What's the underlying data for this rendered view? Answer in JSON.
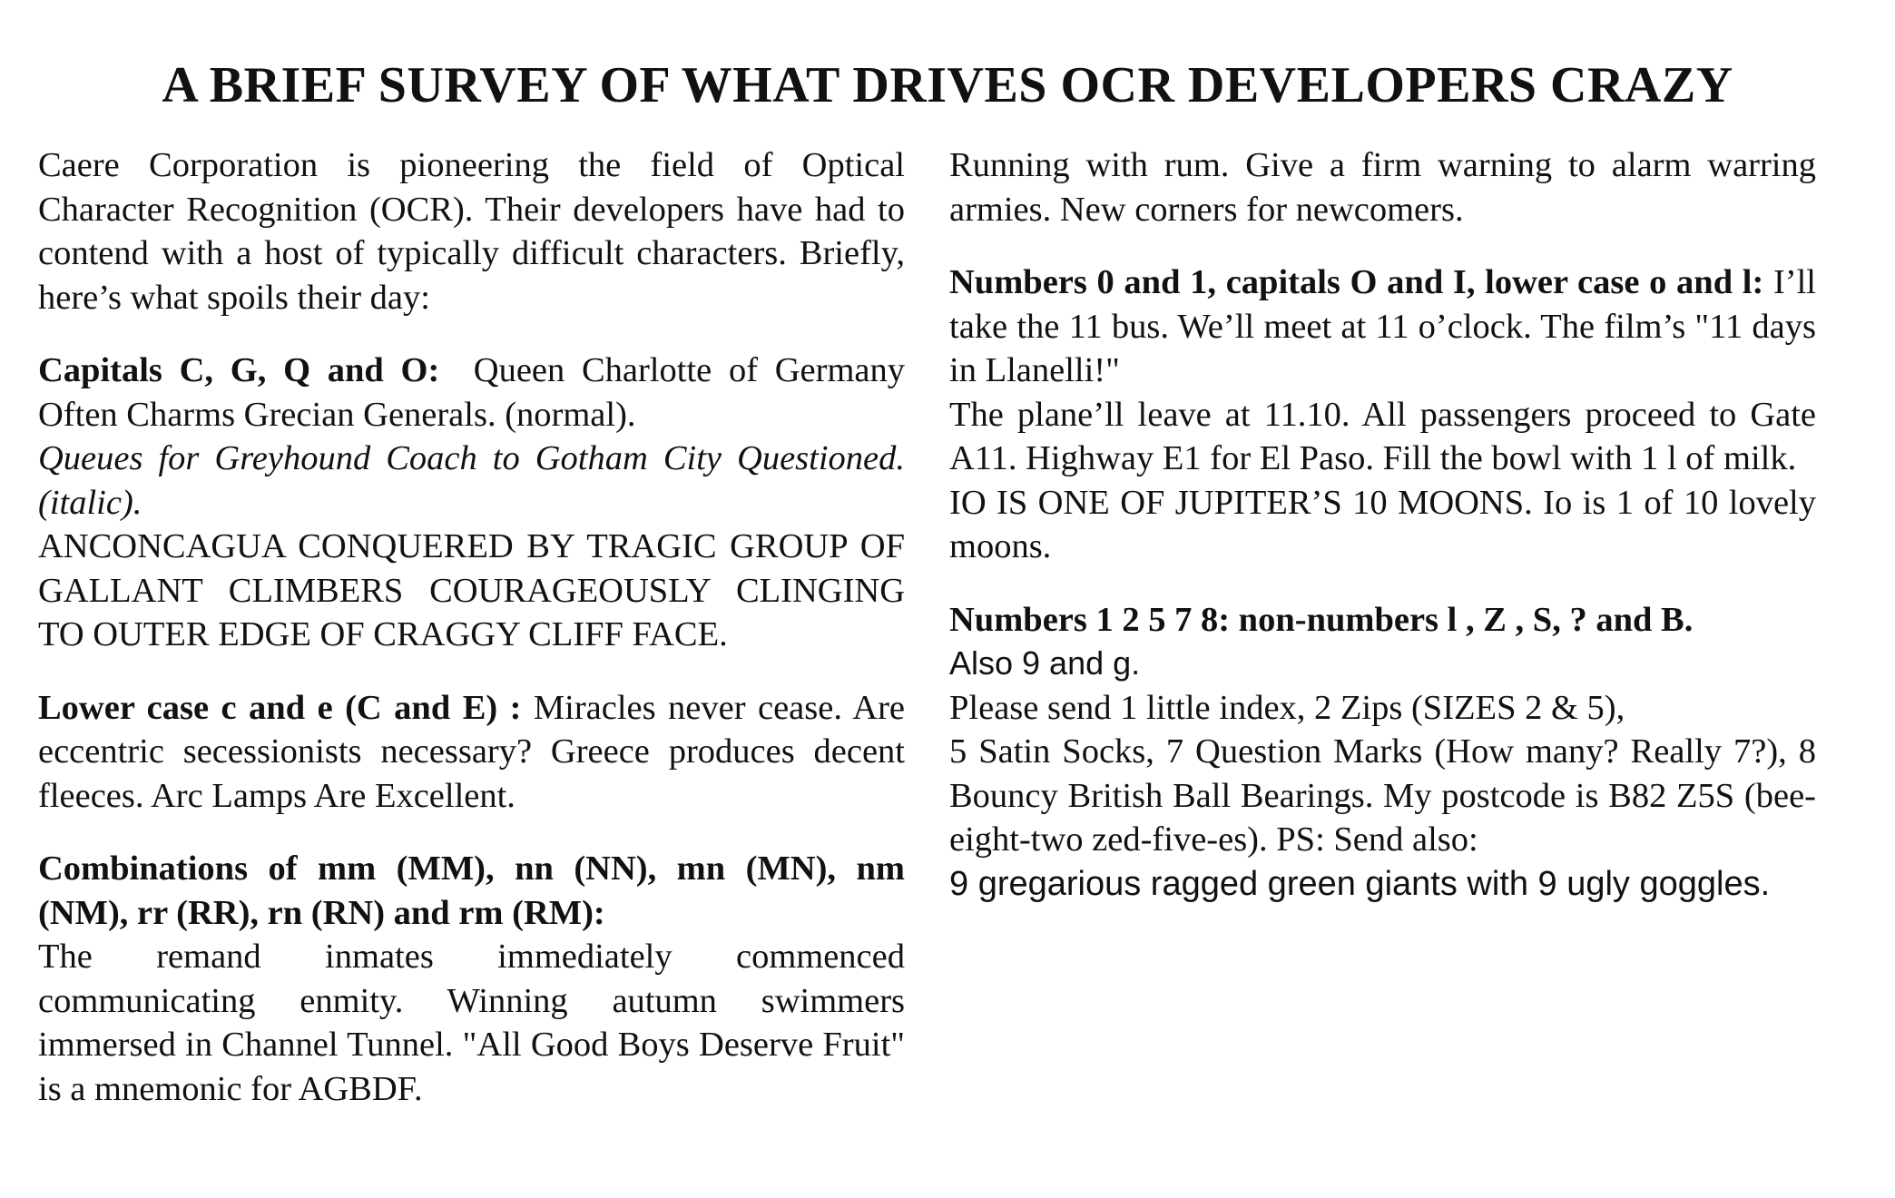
{
  "title": "A BRIEF SURVEY OF WHAT DRIVES OCR DEVELOPERS CRAZY",
  "left": {
    "intro": "Caere Corporation is pioneering the field of Optical Character Recognition (OCR). Their developers have had to contend with a host of typically difficult characters. Briefly, here’s what spoils their day:",
    "capitals": {
      "heading": "Capitals C, G, Q and O:",
      "normal": "Queen Charlotte of Germany Often Charms Grecian Generals. (normal).",
      "italic": "Queues for Greyhound Coach to Gotham City Questioned. (italic).",
      "caps": "ANCONCAGUA CONQUERED BY TRAGIC GROUP OF GALLANT CLIMBERS COURAGEOUSLY CLINGING TO OUTER EDGE OF CRAGGY CLIFF FACE."
    },
    "lowercase": {
      "heading": "Lower case  c and e (C and E) :",
      "text": "Miracles never cease. Are eccentric secessionists necessary? Greece produces decent fleeces. Arc Lamps Are Excellent."
    },
    "combinations": {
      "heading": "Combinations of mm (MM), nn (NN), mn (MN), nm (NM), rr (RR), rn (RN) and rm (RM):",
      "text": "The remand inmates immediately commenced communicating enmity. Winning autumn swimmers immersed in Channel Tunnel. \"All Good Boys Deserve Fruit\" is a mnemonic for AGBDF."
    }
  },
  "right": {
    "rum": "Running with rum. Give a firm warning to alarm warring armies. New corners for newcomers.",
    "numbers01": {
      "heading": "Numbers 0 and 1, capitals O and I, lower case o and l:",
      "text1": "I’ll take the 11 bus. We’ll meet at 11 o’clock. The film’s \"11 days in Llanelli!\"",
      "text2": "The plane’ll leave at 11.10.  All passengers proceed to Gate A11. Highway E1 for El Paso. Fill the bowl with 1 l of milk.",
      "text3": "IO IS ONE OF JUPITER’S 10 MOONS. Io is 1 of 10 lovely moons."
    },
    "numbers12578": {
      "heading": "Numbers 1 2 5 7 8: non-numbers l , Z , S, ? and B.",
      "also": "Also 9 and g.",
      "line1": "Please send 1 little index, 2 Zips (SIZES 2 & 5),",
      "text": "5 Satin Socks, 7 Question Marks (How many? Really 7?), 8 Bouncy British Ball Bearings. My postcode is B82 Z5S (bee-eight-two zed-five-es). PS: Send also:",
      "giants": "9 gregarious ragged green giants with 9 ugly goggles."
    }
  }
}
